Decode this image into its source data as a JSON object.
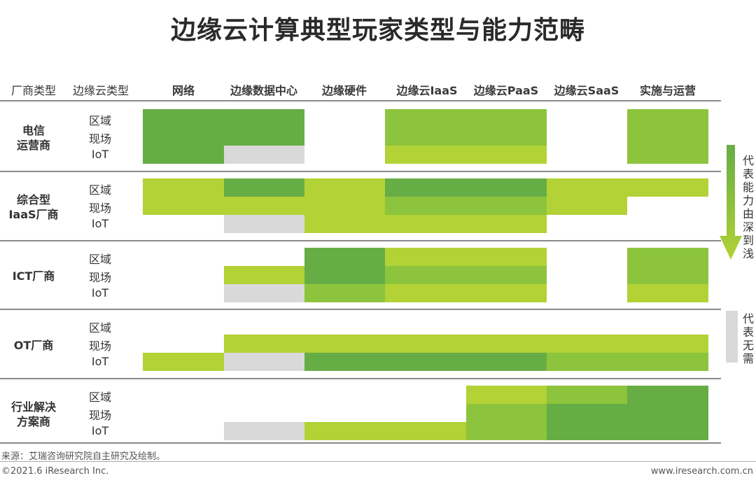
{
  "title": "边缘云计算典型玩家类型与能力范畴",
  "headers": {
    "vendor_type": "厂商类型",
    "cloud_type": "边缘云类型",
    "columns": [
      "网络",
      "边缘数据中心",
      "边缘硬件",
      "边缘云IaaS",
      "边缘云PaaS",
      "边缘云SaaS",
      "实施与运营"
    ]
  },
  "sub_rows": [
    "区域",
    "现场",
    "IoT"
  ],
  "groups": [
    {
      "label_lines": [
        "电信",
        "运营商"
      ],
      "cells": [
        {
          "col": [
            0,
            2
          ],
          "row": [
            0,
            3
          ],
          "level": 1
        },
        {
          "col": [
            1,
            2
          ],
          "row": [
            2,
            3
          ],
          "level": 0
        },
        {
          "col": [
            3,
            5
          ],
          "row": [
            0,
            2
          ],
          "level": 2
        },
        {
          "col": [
            3,
            5
          ],
          "row": [
            2,
            3
          ],
          "level": 3
        },
        {
          "col": [
            6,
            7
          ],
          "row": [
            0,
            3
          ],
          "level": 2
        }
      ]
    },
    {
      "label_lines": [
        "综合型",
        "IaaS厂商"
      ],
      "cells": [
        {
          "col": [
            0,
            1
          ],
          "row": [
            0,
            2
          ],
          "level": 3
        },
        {
          "col": [
            1,
            2
          ],
          "row": [
            0,
            1
          ],
          "level": 1
        },
        {
          "col": [
            1,
            2
          ],
          "row": [
            1,
            2
          ],
          "level": 3
        },
        {
          "col": [
            1,
            2
          ],
          "row": [
            2,
            3
          ],
          "level": 0
        },
        {
          "col": [
            2,
            3
          ],
          "row": [
            0,
            3
          ],
          "level": 3
        },
        {
          "col": [
            3,
            5
          ],
          "row": [
            0,
            1
          ],
          "level": 1
        },
        {
          "col": [
            3,
            5
          ],
          "row": [
            1,
            2
          ],
          "level": 2
        },
        {
          "col": [
            3,
            5
          ],
          "row": [
            2,
            3
          ],
          "level": 3
        },
        {
          "col": [
            5,
            6
          ],
          "row": [
            0,
            2
          ],
          "level": 3
        },
        {
          "col": [
            6,
            7
          ],
          "row": [
            0,
            1
          ],
          "level": 3
        }
      ]
    },
    {
      "label_lines": [
        "ICT厂商"
      ],
      "cells": [
        {
          "col": [
            1,
            2
          ],
          "row": [
            1,
            2
          ],
          "level": 3
        },
        {
          "col": [
            1,
            2
          ],
          "row": [
            2,
            3
          ],
          "level": 0
        },
        {
          "col": [
            2,
            3
          ],
          "row": [
            0,
            2
          ],
          "level": 1
        },
        {
          "col": [
            2,
            3
          ],
          "row": [
            2,
            3
          ],
          "level": 2
        },
        {
          "col": [
            3,
            5
          ],
          "row": [
            0,
            1
          ],
          "level": 3
        },
        {
          "col": [
            3,
            5
          ],
          "row": [
            1,
            2
          ],
          "level": 2
        },
        {
          "col": [
            3,
            5
          ],
          "row": [
            2,
            3
          ],
          "level": 3
        },
        {
          "col": [
            6,
            7
          ],
          "row": [
            0,
            2
          ],
          "level": 2
        },
        {
          "col": [
            6,
            7
          ],
          "row": [
            2,
            3
          ],
          "level": 3
        }
      ]
    },
    {
      "label_lines": [
        "OT厂商"
      ],
      "cells": [
        {
          "col": [
            1,
            7
          ],
          "row": [
            1,
            2
          ],
          "level": 3
        },
        {
          "col": [
            0,
            1
          ],
          "row": [
            2,
            3
          ],
          "level": 3
        },
        {
          "col": [
            1,
            2
          ],
          "row": [
            2,
            3
          ],
          "level": 0
        },
        {
          "col": [
            2,
            5
          ],
          "row": [
            2,
            3
          ],
          "level": 1
        },
        {
          "col": [
            5,
            7
          ],
          "row": [
            2,
            3
          ],
          "level": 2
        }
      ]
    },
    {
      "label_lines": [
        "行业解决",
        "方案商"
      ],
      "cells": [
        {
          "col": [
            4,
            5
          ],
          "row": [
            0,
            1
          ],
          "level": 3
        },
        {
          "col": [
            5,
            6
          ],
          "row": [
            0,
            1
          ],
          "level": 2
        },
        {
          "col": [
            6,
            7
          ],
          "row": [
            0,
            1
          ],
          "level": 1
        },
        {
          "col": [
            4,
            5
          ],
          "row": [
            1,
            3
          ],
          "level": 2
        },
        {
          "col": [
            5,
            7
          ],
          "row": [
            1,
            3
          ],
          "level": 1
        },
        {
          "col": [
            1,
            2
          ],
          "row": [
            2,
            3
          ],
          "level": 0
        },
        {
          "col": [
            2,
            4
          ],
          "row": [
            2,
            3
          ],
          "level": 3
        }
      ]
    }
  ],
  "colors": {
    "level0": "#d9d9d9",
    "level1": "#67ad45",
    "level2": "#8dc43d",
    "level3": "#b2d235"
  },
  "legend": {
    "arrow_text": "代表能力由深到浅",
    "gray_text": "代表无需",
    "arrow_gradient": [
      "#67ad45",
      "#b2d235"
    ]
  },
  "footer": {
    "source": "来源：艾瑞咨询研究院自主研究及绘制。",
    "copyright": "©2021.6 iResearch Inc.",
    "website": "www.iresearch.com.cn"
  }
}
